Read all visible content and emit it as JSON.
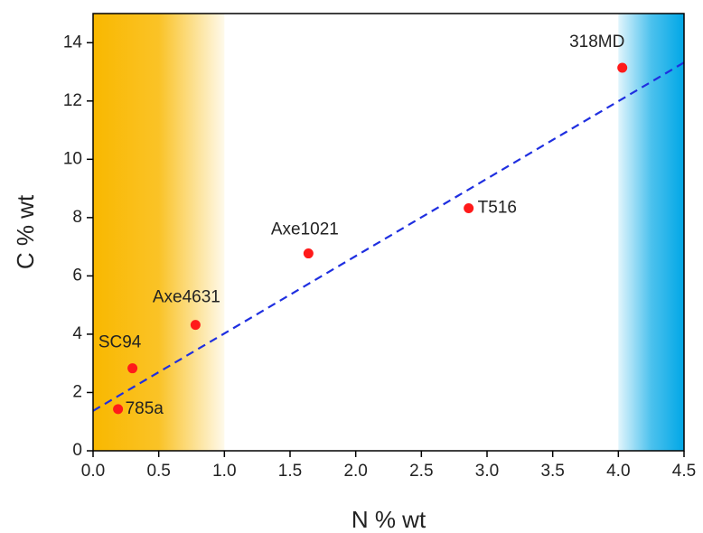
{
  "chart_data": {
    "type": "scatter",
    "x_label": "N % wt",
    "y_label": "C % wt",
    "labels": [
      "785a",
      "SC94",
      "Axe4631",
      "Axe1021",
      "T516",
      "318MD"
    ],
    "x": [
      0.19,
      0.3,
      0.78,
      1.64,
      2.86,
      4.03
    ],
    "values": [
      1.43,
      2.83,
      4.32,
      6.77,
      8.32,
      13.14
    ],
    "color": "#ff1a1a",
    "fit_line": {
      "x": [
        0,
        4.5
      ],
      "y": [
        1.37,
        13.32
      ],
      "color": "#1f2fe0"
    },
    "regions": [
      {
        "xlim": [
          0,
          1
        ],
        "color": "#f9b800"
      },
      {
        "xlim": [
          4,
          4.5
        ],
        "color": "#00a7e6"
      }
    ],
    "xlim": [
      0,
      4.5
    ],
    "ylim": [
      0,
      15
    ],
    "xticks": [
      {
        "value": 0,
        "label": "0.0"
      },
      0.5,
      {
        "value": 1,
        "label": "1.0"
      },
      1.5,
      {
        "value": 2,
        "label": "2.0"
      },
      2.5,
      {
        "value": 3,
        "label": "3.0"
      },
      3.5,
      {
        "value": 4,
        "label": "4.0"
      },
      4.5
    ],
    "yticks": [
      0,
      2,
      4,
      6,
      8,
      10,
      12,
      14
    ]
  }
}
